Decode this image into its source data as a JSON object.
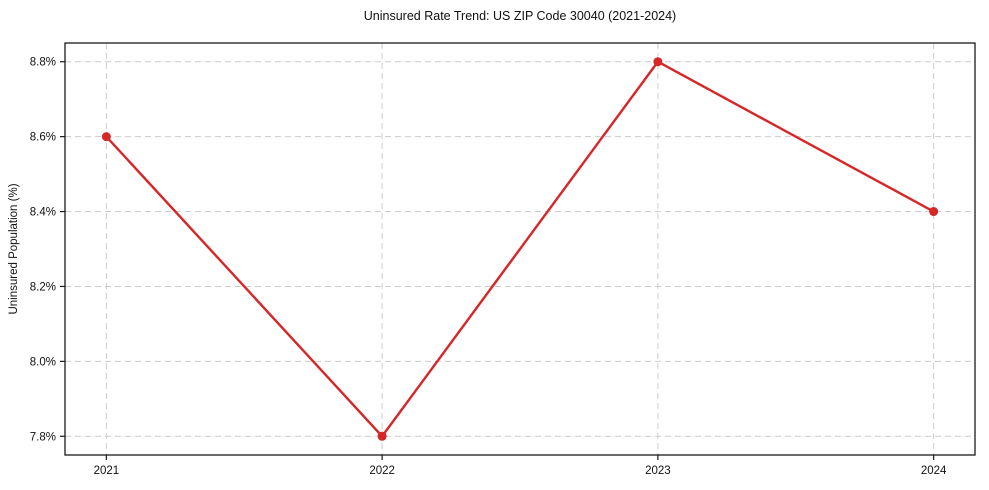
{
  "title": "Uninsured Rate Trend: US ZIP Code 30040 (2021-2024)",
  "colors": {
    "line": "#d62728",
    "grid": "#cccccc",
    "frame": "#1a1a1a",
    "text": "#111111",
    "background": "#ffffff"
  },
  "chart_data": {
    "type": "line",
    "title": "Uninsured Rate Trend: US ZIP Code 30040 (2021-2024)",
    "xlabel": "",
    "ylabel": "Uninsured Population (%)",
    "x": [
      2021,
      2022,
      2023,
      2024
    ],
    "x_tick_labels": [
      "2021",
      "2022",
      "2023",
      "2024"
    ],
    "series": [
      {
        "name": "Uninsured rate",
        "values": [
          8.6,
          7.8,
          8.8,
          8.4
        ],
        "color": "#d62728",
        "marker": "circle"
      }
    ],
    "y_ticks": [
      7.8,
      8.0,
      8.2,
      8.4,
      8.6,
      8.8
    ],
    "y_tick_labels": [
      "7.8%",
      "8.0%",
      "8.2%",
      "8.4%",
      "8.6%",
      "8.8%"
    ],
    "xlim": [
      2020.85,
      2024.15
    ],
    "ylim": [
      7.75,
      8.85
    ],
    "grid": true,
    "grid_style": "dashed",
    "legend": "none"
  }
}
